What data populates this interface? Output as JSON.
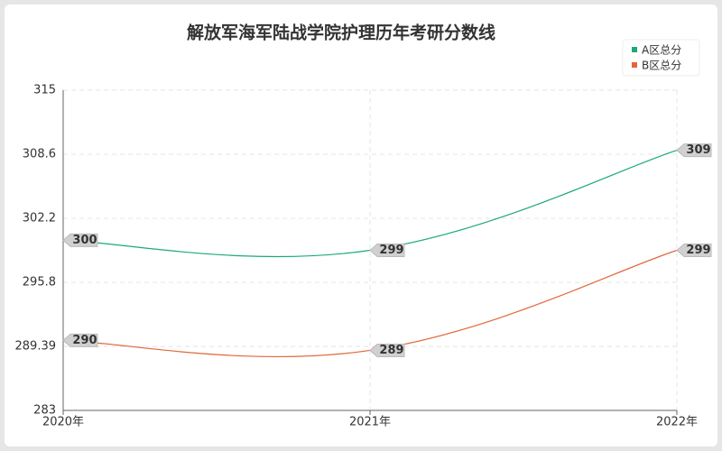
{
  "chart_data": {
    "type": "line",
    "title": "解放军海军陆战学院护理历年考研分数线",
    "categories": [
      "2020年",
      "2021年",
      "2022年"
    ],
    "series": [
      {
        "name": "A区总分",
        "color": "#1aa97a",
        "values": [
          300,
          299,
          309
        ]
      },
      {
        "name": "B区总分",
        "color": "#e0673a",
        "values": [
          290,
          289,
          299
        ]
      }
    ],
    "ylim": [
      283,
      315
    ],
    "yticks": [
      283,
      289.39,
      295.8,
      302.2,
      308.6,
      315
    ],
    "grid": true,
    "smooth": true,
    "legend": "top-right"
  }
}
